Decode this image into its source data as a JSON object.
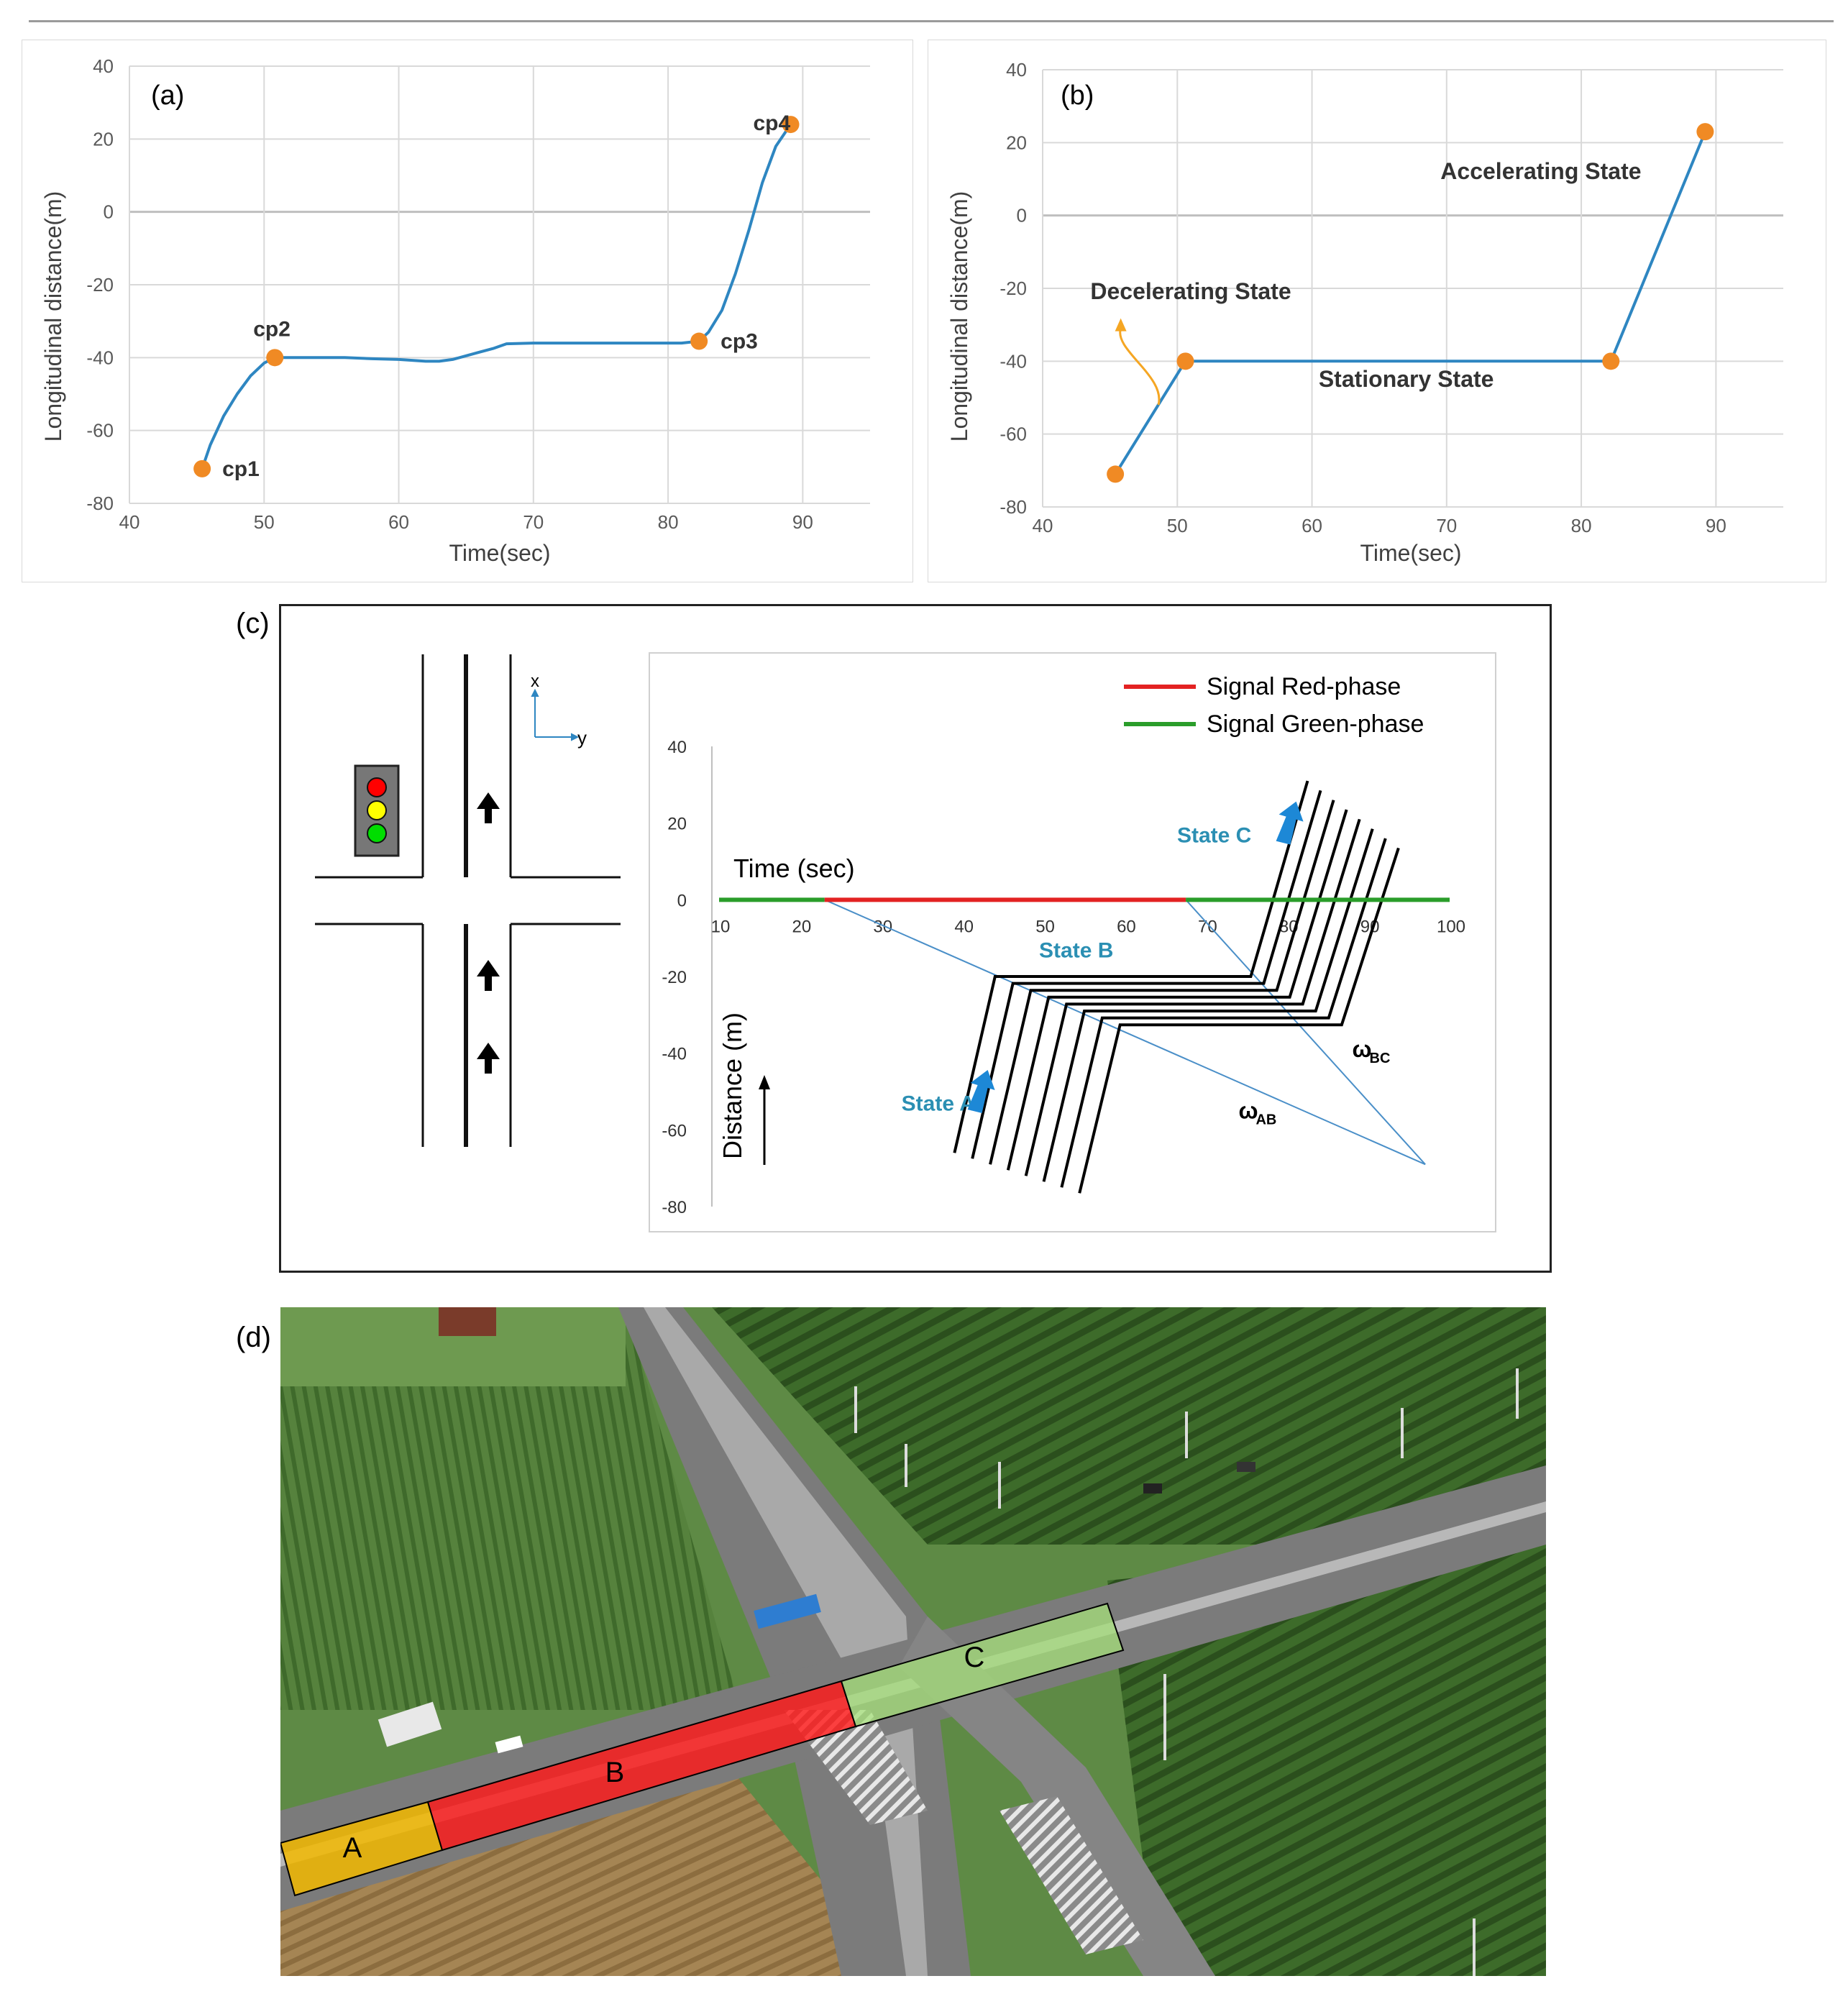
{
  "chart_data": [
    {
      "id": "a",
      "type": "line",
      "panel_label": "(a)",
      "xlabel": "Time(sec)",
      "ylabel": "Longitudinal distance(m)",
      "xlim": [
        40,
        95
      ],
      "ylim": [
        -80,
        40
      ],
      "xticks": [
        40,
        50,
        60,
        70,
        80,
        90
      ],
      "yticks": [
        40,
        20,
        0,
        -20,
        -40,
        -60,
        -80
      ],
      "grid": true,
      "series": [
        {
          "color": "#2e86c1",
          "x": [
            45.4,
            46.0,
            47.0,
            48.0,
            49.0,
            50.0,
            50.8,
            52,
            54,
            56,
            58,
            60,
            62,
            63,
            64,
            65,
            66,
            67,
            68,
            70,
            72,
            74,
            76,
            78,
            80,
            81,
            82.3,
            83,
            84,
            85,
            86,
            87,
            88,
            89.1
          ],
          "y": [
            -70.5,
            -64,
            -56,
            -50,
            -45,
            -41.5,
            -40,
            -40,
            -40,
            -40,
            -40.3,
            -40.5,
            -41,
            -41,
            -40.5,
            -39.5,
            -38.5,
            -37.5,
            -36.2,
            -36,
            -36,
            -36,
            -36,
            -36,
            -36,
            -36,
            -35.5,
            -33,
            -27,
            -17,
            -5,
            8,
            18,
            24
          ]
        }
      ],
      "points": [
        {
          "label": "cp1",
          "x": 45.4,
          "y": -70.5
        },
        {
          "label": "cp2",
          "x": 50.8,
          "y": -40
        },
        {
          "label": "cp3",
          "x": 82.3,
          "y": -35.5
        },
        {
          "label": "cp4",
          "x": 89.1,
          "y": 24
        }
      ],
      "marker_color": "#f08a24"
    },
    {
      "id": "b",
      "type": "line",
      "panel_label": "(b)",
      "xlabel": "Time(sec)",
      "ylabel": "Longitudinal distance(m)",
      "xlim": [
        40,
        95
      ],
      "ylim": [
        -80,
        40
      ],
      "xticks": [
        40,
        50,
        60,
        70,
        80,
        90
      ],
      "yticks": [
        40,
        20,
        0,
        -20,
        -40,
        -60,
        -80
      ],
      "grid": true,
      "series": [
        {
          "color": "#2e86c1",
          "x": [
            45.4,
            50.6,
            82.2,
            89.2
          ],
          "y": [
            -71,
            -40,
            -40,
            23
          ]
        }
      ],
      "points": [
        {
          "x": 45.4,
          "y": -71
        },
        {
          "x": 50.6,
          "y": -40
        },
        {
          "x": 82.2,
          "y": -40
        },
        {
          "x": 89.2,
          "y": 23
        }
      ],
      "marker_color": "#f08a24",
      "annotations": [
        {
          "text": "Decelerating State",
          "x": 51,
          "y": -23
        },
        {
          "text": "Stationary State",
          "x": 67,
          "y": -47
        },
        {
          "text": "Accelerating State",
          "x": 77,
          "y": 10
        }
      ]
    },
    {
      "id": "c",
      "type": "line",
      "panel_label": "(c)",
      "xlabel": "Time (sec)",
      "ylabel": "Distance (m)",
      "xlim": [
        10,
        100
      ],
      "ylim": [
        -80,
        40
      ],
      "xticks": [
        10,
        20,
        30,
        40,
        50,
        60,
        70,
        80,
        90,
        100
      ],
      "yticks": [
        40,
        20,
        0,
        -20,
        -40,
        -60,
        -80
      ],
      "legend": [
        {
          "name": "Signal Red-phase",
          "color": "#e32222"
        },
        {
          "name": "Signal Green-phase",
          "color": "#2a9d2a"
        }
      ],
      "signal_segments": [
        {
          "phase": "green",
          "x": [
            10,
            23
          ]
        },
        {
          "phase": "red",
          "x": [
            23,
            67.5
          ]
        },
        {
          "phase": "green",
          "x": [
            67.5,
            100
          ]
        }
      ],
      "shock_waves": [
        {
          "x": [
            23,
            97
          ],
          "y": [
            0,
            -69
          ]
        },
        {
          "x": [
            67.5,
            97
          ],
          "y": [
            0,
            -69
          ]
        }
      ],
      "trajectories": {
        "count": 8,
        "start_x": 39,
        "start_y": -66,
        "queue_x": 44,
        "queue_y_start": -20,
        "queue_y_step": -1.8,
        "queue_x_step": 2.2,
        "depart_x": 75.5,
        "depart_x_step": 1.6,
        "end_x": 82.5,
        "end_y": 31,
        "end_y_step": -2.5,
        "start_x_step": 2.2,
        "start_y_step": -1.5
      },
      "state_labels": [
        {
          "text": "State A",
          "x": 37,
          "y": -55
        },
        {
          "text": "State B",
          "x": 54,
          "y": -15
        },
        {
          "text": "State C",
          "x": 71,
          "y": 15
        }
      ],
      "wave_labels": [
        {
          "text": "ω",
          "sub": "AB",
          "x": 74,
          "y": -57
        },
        {
          "text": "ω",
          "sub": "BC",
          "x": 88,
          "y": -41
        }
      ],
      "axis_labels": {
        "x": "x",
        "y": "y"
      }
    }
  ],
  "panel_d": {
    "panel_label": "(d)",
    "zones": [
      {
        "label": "A",
        "color": "#f2b800"
      },
      {
        "label": "B",
        "color": "#ff1a1a"
      },
      {
        "label": "C",
        "color": "#a5e07a"
      }
    ]
  }
}
